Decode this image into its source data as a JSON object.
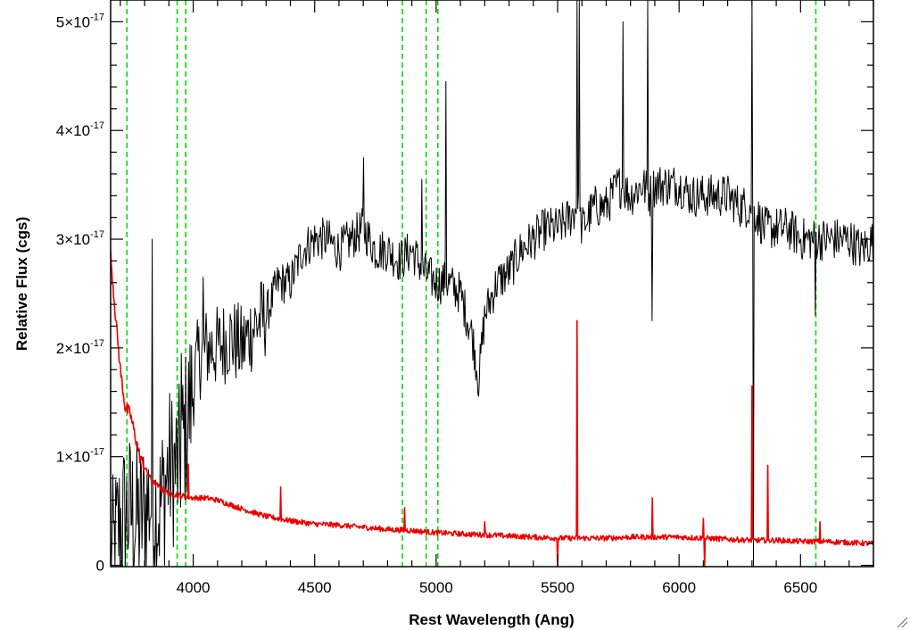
{
  "chart_data": {
    "type": "line",
    "title": "",
    "xlabel": "Rest Wavelength (Ang)",
    "ylabel": "Relative Flux (cgs)",
    "xlim": [
      3660,
      6800
    ],
    "ylim": [
      -0.012,
      5.2
    ],
    "y_unit_exponent": -17,
    "grid": false,
    "x_ticks": [
      4000,
      4500,
      5000,
      5500,
      6000,
      6500
    ],
    "y_ticks": [
      {
        "value": 0,
        "label": "0"
      },
      {
        "value": 1,
        "label": "1×10",
        "exp": "-17"
      },
      {
        "value": 2,
        "label": "2×10",
        "exp": "-17"
      },
      {
        "value": 3,
        "label": "3×10",
        "exp": "-17"
      },
      {
        "value": 4,
        "label": "4×10",
        "exp": "-17"
      },
      {
        "value": 5,
        "label": "5×10",
        "exp": "-17"
      }
    ],
    "reference_lines": {
      "style": "dashed",
      "color": "#00dd00",
      "x": [
        3727,
        3934,
        3969,
        4861,
        4959,
        5007,
        6563
      ]
    },
    "series": [
      {
        "color": "#000000",
        "x": [
          3660,
          3700,
          3740,
          3780,
          3820,
          3860,
          3900,
          3940,
          3980,
          4020,
          4060,
          4100,
          4150,
          4200,
          4250,
          4300,
          4350,
          4400,
          4450,
          4500,
          4550,
          4600,
          4650,
          4700,
          4750,
          4800,
          4850,
          4900,
          4950,
          5000,
          5050,
          5100,
          5150,
          5175,
          5200,
          5250,
          5300,
          5350,
          5400,
          5450,
          5500,
          5550,
          5580,
          5600,
          5650,
          5700,
          5750,
          5800,
          5850,
          5880,
          5900,
          5950,
          6000,
          6050,
          6100,
          6150,
          6200,
          6250,
          6300,
          6350,
          6400,
          6450,
          6500,
          6550,
          6600,
          6650,
          6700,
          6750,
          6800
        ],
        "y": [
          0.0,
          0.4,
          0.5,
          0.4,
          0.6,
          0.5,
          0.9,
          0.9,
          1.4,
          1.9,
          2.0,
          2.0,
          2.1,
          2.0,
          2.2,
          2.3,
          2.6,
          2.6,
          2.9,
          3.0,
          3.0,
          2.9,
          3.0,
          3.1,
          2.9,
          2.9,
          2.8,
          2.9,
          2.7,
          2.6,
          2.6,
          2.5,
          2.1,
          1.7,
          2.3,
          2.6,
          2.7,
          2.9,
          3.0,
          3.1,
          3.1,
          3.2,
          3.3,
          3.1,
          3.3,
          3.3,
          3.5,
          3.4,
          3.5,
          3.4,
          3.5,
          3.5,
          3.5,
          3.4,
          3.4,
          3.4,
          3.4,
          3.3,
          3.3,
          3.1,
          3.1,
          3.1,
          3.0,
          3.0,
          3.0,
          3.0,
          3.0,
          2.9,
          3.0
        ]
      },
      {
        "color": "#ee0000",
        "x": [
          3660,
          3680,
          3700,
          3720,
          3740,
          3760,
          3780,
          3800,
          3830,
          3860,
          3900,
          3950,
          4000,
          4050,
          4100,
          4200,
          4300,
          4400,
          4500,
          4600,
          4700,
          4800,
          4900,
          5000,
          5100,
          5200,
          5300,
          5400,
          5500,
          5600,
          5700,
          5800,
          5900,
          6000,
          6100,
          6200,
          6300,
          6400,
          6500,
          6600,
          6700,
          6800
        ],
        "y": [
          2.85,
          2.3,
          1.8,
          1.45,
          1.4,
          1.2,
          1.0,
          0.9,
          0.78,
          0.72,
          0.66,
          0.64,
          0.62,
          0.62,
          0.6,
          0.52,
          0.45,
          0.41,
          0.38,
          0.37,
          0.35,
          0.33,
          0.32,
          0.3,
          0.29,
          0.28,
          0.27,
          0.26,
          0.25,
          0.25,
          0.25,
          0.26,
          0.26,
          0.26,
          0.25,
          0.24,
          0.23,
          0.23,
          0.22,
          0.22,
          0.21,
          0.2
        ]
      }
    ],
    "spikes": [
      {
        "series": 0,
        "x": 3830,
        "y": 3.0
      },
      {
        "series": 0,
        "x": 3950,
        "y": 1.95
      },
      {
        "series": 0,
        "x": 4040,
        "y": 2.65
      },
      {
        "series": 0,
        "x": 4700,
        "y": 3.75
      },
      {
        "series": 0,
        "x": 4940,
        "y": 3.55
      },
      {
        "series": 0,
        "x": 5040,
        "y": 4.45
      },
      {
        "series": 0,
        "x": 5580,
        "y": 5.2
      },
      {
        "series": 0,
        "x": 5590,
        "y": 5.2
      },
      {
        "series": 0,
        "x": 5770,
        "y": 5.0
      },
      {
        "series": 0,
        "x": 5870,
        "y": 5.2
      },
      {
        "series": 0,
        "x": 5890,
        "y": 2.25
      },
      {
        "series": 0,
        "x": 6300,
        "y": 5.2
      },
      {
        "series": 0,
        "x": 6305,
        "y": -0.02
      },
      {
        "series": 0,
        "x": 6560,
        "y": 2.3
      },
      {
        "series": 1,
        "x": 3980,
        "y": 0.93
      },
      {
        "series": 1,
        "x": 4360,
        "y": 0.72
      },
      {
        "series": 1,
        "x": 4870,
        "y": 0.53
      },
      {
        "series": 1,
        "x": 5200,
        "y": 0.4
      },
      {
        "series": 1,
        "x": 5500,
        "y": -0.02
      },
      {
        "series": 1,
        "x": 5580,
        "y": 2.25
      },
      {
        "series": 1,
        "x": 5890,
        "y": 0.62
      },
      {
        "series": 1,
        "x": 6100,
        "y": 0.43
      },
      {
        "series": 1,
        "x": 6105,
        "y": -0.02
      },
      {
        "series": 1,
        "x": 6300,
        "y": 1.65
      },
      {
        "series": 1,
        "x": 6365,
        "y": 0.92
      },
      {
        "series": 1,
        "x": 6580,
        "y": 0.4
      }
    ]
  }
}
